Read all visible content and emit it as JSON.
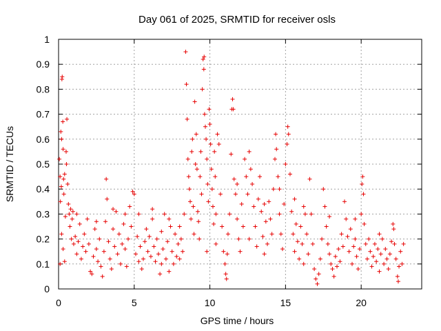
{
  "chart_data": {
    "type": "scatter",
    "title": "Day 061 of 2025, SRMTID for receiver osls",
    "xlabel": "GPS time / hours",
    "ylabel": "SRMTID / TECUs",
    "xlim": [
      0,
      24
    ],
    "ylim": [
      0,
      1
    ],
    "xticks": [
      0,
      5,
      10,
      15,
      20
    ],
    "yticks": [
      0,
      0.1,
      0.2,
      0.3,
      0.4,
      0.5,
      0.6,
      0.7,
      0.8,
      0.9,
      1
    ],
    "grid": true,
    "marker": "plus",
    "color": "#e60000",
    "series": [
      {
        "name": "SRMTID",
        "points": [
          [
            0.05,
            0.52
          ],
          [
            0.1,
            0.45
          ],
          [
            0.12,
            0.35
          ],
          [
            0.15,
            0.63
          ],
          [
            0.18,
            0.41
          ],
          [
            0.2,
            0.6
          ],
          [
            0.22,
            0.84
          ],
          [
            0.24,
            0.85
          ],
          [
            0.28,
            0.67
          ],
          [
            0.3,
            0.56
          ],
          [
            0.33,
            0.44
          ],
          [
            0.35,
            0.38
          ],
          [
            0.4,
            0.46
          ],
          [
            0.45,
            0.29
          ],
          [
            0.5,
            0.55
          ],
          [
            0.52,
            0.5
          ],
          [
            0.55,
            0.68
          ],
          [
            0.6,
            0.42
          ],
          [
            0.65,
            0.34
          ],
          [
            0.7,
            0.3
          ],
          [
            0.75,
            0.25
          ],
          [
            0.8,
            0.32
          ],
          [
            0.85,
            0.2
          ],
          [
            0.9,
            0.28
          ],
          [
            0.95,
            0.31
          ],
          [
            1.0,
            0.18
          ],
          [
            0.1,
            0.1
          ],
          [
            0.2,
            0.22
          ],
          [
            0.3,
            0.16
          ],
          [
            0.4,
            0.11
          ],
          [
            1.1,
            0.21
          ],
          [
            1.2,
            0.14
          ],
          [
            1.3,
            0.19
          ],
          [
            1.4,
            0.26
          ],
          [
            1.5,
            0.12
          ],
          [
            1.6,
            0.17
          ],
          [
            1.7,
            0.22
          ],
          [
            1.8,
            0.15
          ],
          [
            1.9,
            0.28
          ],
          [
            2.0,
            0.18
          ],
          [
            2.1,
            0.07
          ],
          [
            2.2,
            0.06
          ],
          [
            2.3,
            0.13
          ],
          [
            2.4,
            0.24
          ],
          [
            2.5,
            0.16
          ],
          [
            2.6,
            0.11
          ],
          [
            2.7,
            0.2
          ],
          [
            2.8,
            0.09
          ],
          [
            2.9,
            0.05
          ],
          [
            3.0,
            0.15
          ],
          [
            3.1,
            0.27
          ],
          [
            3.15,
            0.44
          ],
          [
            3.2,
            0.36
          ],
          [
            3.3,
            0.19
          ],
          [
            3.4,
            0.12
          ],
          [
            3.5,
            0.08
          ],
          [
            3.6,
            0.24
          ],
          [
            3.7,
            0.17
          ],
          [
            3.8,
            0.31
          ],
          [
            3.9,
            0.14
          ],
          [
            4.0,
            0.22
          ],
          [
            4.1,
            0.1
          ],
          [
            4.2,
            0.18
          ],
          [
            4.3,
            0.26
          ],
          [
            4.4,
            0.16
          ],
          [
            4.5,
            0.09
          ],
          [
            4.6,
            0.2
          ],
          [
            4.7,
            0.33
          ],
          [
            4.8,
            0.25
          ],
          [
            4.9,
            0.39
          ],
          [
            5.0,
            0.38
          ],
          [
            5.1,
            0.14
          ],
          [
            5.2,
            0.21
          ],
          [
            5.3,
            0.11
          ],
          [
            5.4,
            0.17
          ],
          [
            5.5,
            0.08
          ],
          [
            5.6,
            0.12
          ],
          [
            5.7,
            0.19
          ],
          [
            5.8,
            0.24
          ],
          [
            5.9,
            0.15
          ],
          [
            6.0,
            0.21
          ],
          [
            6.1,
            0.13
          ],
          [
            6.2,
            0.28
          ],
          [
            6.3,
            0.17
          ],
          [
            6.4,
            0.11
          ],
          [
            6.5,
            0.2
          ],
          [
            6.6,
            0.14
          ],
          [
            6.7,
            0.06
          ],
          [
            6.8,
            0.23
          ],
          [
            6.9,
            0.16
          ],
          [
            7.0,
            0.3
          ],
          [
            7.1,
            0.12
          ],
          [
            7.2,
            0.19
          ],
          [
            7.3,
            0.07
          ],
          [
            7.4,
            0.25
          ],
          [
            7.5,
            0.15
          ],
          [
            7.6,
            0.1
          ],
          [
            7.7,
            0.22
          ],
          [
            7.8,
            0.13
          ],
          [
            7.9,
            0.18
          ],
          [
            8.0,
            0.25
          ],
          [
            8.1,
            0.2
          ],
          [
            8.2,
            0.15
          ],
          [
            8.3,
            0.3
          ],
          [
            8.4,
            0.95
          ],
          [
            8.45,
            0.82
          ],
          [
            8.5,
            0.68
          ],
          [
            8.55,
            0.52
          ],
          [
            8.6,
            0.45
          ],
          [
            8.65,
            0.4
          ],
          [
            8.7,
            0.35
          ],
          [
            8.75,
            0.28
          ],
          [
            8.8,
            0.55
          ],
          [
            8.85,
            0.6
          ],
          [
            8.9,
            0.33
          ],
          [
            8.95,
            0.22
          ],
          [
            9.0,
            0.75
          ],
          [
            9.05,
            0.5
          ],
          [
            9.1,
            0.62
          ],
          [
            9.15,
            0.48
          ],
          [
            9.2,
            0.31
          ],
          [
            9.25,
            0.27
          ],
          [
            9.3,
            0.2
          ],
          [
            9.35,
            0.45
          ],
          [
            9.4,
            0.55
          ],
          [
            9.45,
            0.38
          ],
          [
            9.5,
            0.8
          ],
          [
            9.55,
            0.92
          ],
          [
            9.6,
            0.88
          ],
          [
            9.62,
            0.93
          ],
          [
            9.65,
            0.7
          ],
          [
            9.7,
            0.65
          ],
          [
            9.75,
            0.6
          ],
          [
            9.8,
            0.52
          ],
          [
            9.85,
            0.42
          ],
          [
            9.9,
            0.35
          ],
          [
            9.95,
            0.72
          ],
          [
            10.0,
            0.66
          ],
          [
            10.05,
            0.58
          ],
          [
            10.1,
            0.48
          ],
          [
            10.15,
            0.4
          ],
          [
            10.2,
            0.33
          ],
          [
            10.25,
            0.26
          ],
          [
            10.3,
            0.55
          ],
          [
            10.35,
            0.45
          ],
          [
            10.4,
            0.3
          ],
          [
            10.5,
            0.62
          ],
          [
            10.6,
            0.58
          ],
          [
            10.7,
            0.38
          ],
          [
            10.8,
            0.25
          ],
          [
            10.9,
            0.15
          ],
          [
            11.0,
            0.1
          ],
          [
            11.05,
            0.06
          ],
          [
            11.1,
            0.04
          ],
          [
            11.15,
            0.14
          ],
          [
            11.2,
            0.22
          ],
          [
            11.3,
            0.3
          ],
          [
            11.4,
            0.54
          ],
          [
            11.45,
            0.72
          ],
          [
            11.5,
            0.76
          ],
          [
            11.55,
            0.72
          ],
          [
            11.6,
            0.44
          ],
          [
            11.7,
            0.38
          ],
          [
            11.8,
            0.28
          ],
          [
            11.9,
            0.2
          ],
          [
            12.0,
            0.15
          ],
          [
            12.1,
            0.34
          ],
          [
            12.2,
            0.25
          ],
          [
            12.3,
            0.52
          ],
          [
            12.4,
            0.45
          ],
          [
            12.5,
            0.38
          ],
          [
            12.6,
            0.55
          ],
          [
            12.7,
            0.48
          ],
          [
            12.8,
            0.42
          ],
          [
            12.9,
            0.33
          ],
          [
            13.0,
            0.25
          ],
          [
            13.1,
            0.17
          ],
          [
            13.2,
            0.36
          ],
          [
            13.3,
            0.45
          ],
          [
            13.4,
            0.31
          ],
          [
            13.5,
            0.21
          ],
          [
            13.6,
            0.14
          ],
          [
            13.7,
            0.27
          ],
          [
            13.8,
            0.18
          ],
          [
            13.9,
            0.35
          ],
          [
            14.0,
            0.28
          ],
          [
            14.1,
            0.22
          ],
          [
            14.2,
            0.4
          ],
          [
            14.3,
            0.52
          ],
          [
            14.35,
            0.62
          ],
          [
            14.4,
            0.56
          ],
          [
            14.5,
            0.45
          ],
          [
            14.6,
            0.3
          ],
          [
            14.7,
            0.22
          ],
          [
            14.8,
            0.16
          ],
          [
            14.9,
            0.34
          ],
          [
            15.0,
            0.5
          ],
          [
            15.1,
            0.58
          ],
          [
            15.15,
            0.65
          ],
          [
            15.2,
            0.62
          ],
          [
            15.3,
            0.46
          ],
          [
            15.4,
            0.31
          ],
          [
            15.5,
            0.22
          ],
          [
            15.6,
            0.15
          ],
          [
            15.7,
            0.26
          ],
          [
            15.8,
            0.19
          ],
          [
            15.9,
            0.12
          ],
          [
            16.0,
            0.25
          ],
          [
            16.1,
            0.18
          ],
          [
            16.2,
            0.1
          ],
          [
            16.3,
            0.3
          ],
          [
            16.4,
            0.22
          ],
          [
            16.5,
            0.14
          ],
          [
            16.6,
            0.44
          ],
          [
            16.7,
            0.3
          ],
          [
            16.8,
            0.18
          ],
          [
            16.9,
            0.08
          ],
          [
            17.0,
            0.04
          ],
          [
            17.1,
            0.02
          ],
          [
            17.2,
            0.06
          ],
          [
            17.3,
            0.12
          ],
          [
            17.4,
            0.2
          ],
          [
            17.5,
            0.4
          ],
          [
            17.6,
            0.33
          ],
          [
            17.7,
            0.25
          ],
          [
            17.8,
            0.18
          ],
          [
            17.9,
            0.14
          ],
          [
            18.0,
            0.1
          ],
          [
            18.1,
            0.08
          ],
          [
            18.2,
            0.05
          ],
          [
            18.3,
            0.13
          ],
          [
            18.4,
            0.09
          ],
          [
            18.5,
            0.16
          ],
          [
            18.6,
            0.11
          ],
          [
            18.7,
            0.22
          ],
          [
            18.8,
            0.17
          ],
          [
            18.9,
            0.35
          ],
          [
            19.0,
            0.28
          ],
          [
            19.1,
            0.21
          ],
          [
            19.2,
            0.15
          ],
          [
            19.3,
            0.24
          ],
          [
            19.4,
            0.1
          ],
          [
            19.5,
            0.17
          ],
          [
            19.6,
            0.2
          ],
          [
            19.7,
            0.13
          ],
          [
            19.8,
            0.08
          ],
          [
            19.9,
            0.16
          ],
          [
            20.0,
            0.3
          ],
          [
            20.05,
            0.42
          ],
          [
            20.1,
            0.45
          ],
          [
            20.15,
            0.38
          ],
          [
            20.2,
            0.26
          ],
          [
            20.3,
            0.18
          ],
          [
            20.4,
            0.12
          ],
          [
            20.5,
            0.2
          ],
          [
            20.6,
            0.15
          ],
          [
            20.7,
            0.09
          ],
          [
            20.8,
            0.13
          ],
          [
            20.9,
            0.18
          ],
          [
            21.0,
            0.11
          ],
          [
            21.1,
            0.16
          ],
          [
            21.2,
            0.07
          ],
          [
            21.3,
            0.14
          ],
          [
            21.4,
            0.2
          ],
          [
            21.5,
            0.1
          ],
          [
            21.6,
            0.16
          ],
          [
            21.7,
            0.12
          ],
          [
            21.8,
            0.08
          ],
          [
            21.9,
            0.14
          ],
          [
            22.0,
            0.19
          ],
          [
            22.1,
            0.26
          ],
          [
            22.15,
            0.24
          ],
          [
            22.2,
            0.18
          ],
          [
            22.3,
            0.12
          ],
          [
            22.4,
            0.05
          ],
          [
            22.45,
            0.03
          ],
          [
            22.5,
            0.09
          ],
          [
            22.6,
            0.15
          ],
          [
            22.7,
            0.1
          ],
          [
            22.8,
            0.18
          ],
          [
            1.2,
            0.3
          ],
          [
            2.5,
            0.27
          ],
          [
            3.6,
            0.32
          ],
          [
            4.4,
            0.3
          ],
          [
            6.2,
            0.32
          ],
          [
            7.3,
            0.28
          ],
          [
            9.8,
            0.15
          ],
          [
            10.4,
            0.18
          ],
          [
            12.6,
            0.2
          ],
          [
            13.6,
            0.34
          ],
          [
            14.6,
            0.4
          ],
          [
            15.6,
            0.36
          ],
          [
            16.2,
            0.33
          ],
          [
            17.9,
            0.29
          ],
          [
            19.6,
            0.28
          ],
          [
            21.2,
            0.22
          ],
          [
            5.3,
            0.3
          ],
          [
            6.8,
            0.1
          ],
          [
            8.0,
            0.12
          ],
          [
            11.8,
            0.42
          ]
        ]
      }
    ]
  }
}
